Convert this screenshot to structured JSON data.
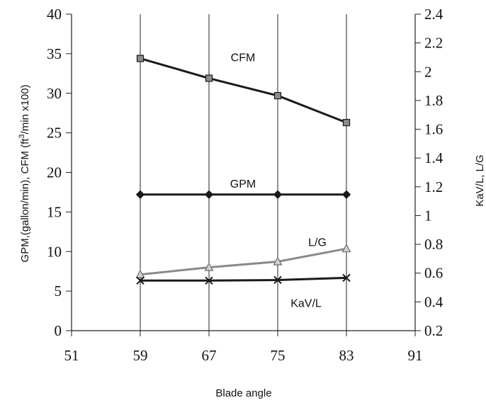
{
  "chart_data": {
    "type": "line",
    "xlabel": "Blade angle",
    "ylabel_left": "GPM,(gallon/min),  CFM (ft",
    "ylabel_left_sup": "3",
    "ylabel_left_tail": "/min x100)",
    "ylabel_right": "KaV/L,    L/G",
    "x_ticks": [
      "51",
      "59",
      "67",
      "75",
      "83",
      "91"
    ],
    "xlim": [
      51,
      91
    ],
    "y_left_ticks": [
      "0",
      "5",
      "10",
      "15",
      "20",
      "25",
      "30",
      "35",
      "40"
    ],
    "ylim_left": [
      0,
      40
    ],
    "y_right_ticks": [
      "0.2",
      "0.4",
      "0.6",
      "0.8",
      "1",
      "1.2",
      "1.4",
      "1.6",
      "1.8",
      "2",
      "2.2",
      "2.4"
    ],
    "ylim_right": [
      0.2,
      2.4
    ],
    "grid": "vertical",
    "x": [
      59,
      67,
      75,
      83
    ],
    "series": [
      {
        "name": "CFM",
        "axis": "left",
        "values": [
          34.4,
          31.9,
          29.7,
          26.3
        ],
        "marker": "square",
        "color": "#1a1a1a",
        "marker_fill": "#8c8c8c"
      },
      {
        "name": "GPM",
        "axis": "left",
        "values": [
          17.2,
          17.2,
          17.2,
          17.2
        ],
        "marker": "diamond",
        "color": "#1a1a1a",
        "marker_fill": "#1a1a1a"
      },
      {
        "name": "L/G",
        "axis": "right",
        "values": [
          0.59,
          0.64,
          0.68,
          0.77
        ],
        "marker": "triangle",
        "color": "#8a8a8a",
        "marker_fill": "#d0d0d0"
      },
      {
        "name": "KaV/L",
        "axis": "right",
        "values": [
          0.548,
          0.548,
          0.552,
          0.567
        ],
        "marker": "x",
        "color": "#1a1a1a",
        "marker_fill": "#1a1a1a"
      }
    ]
  }
}
